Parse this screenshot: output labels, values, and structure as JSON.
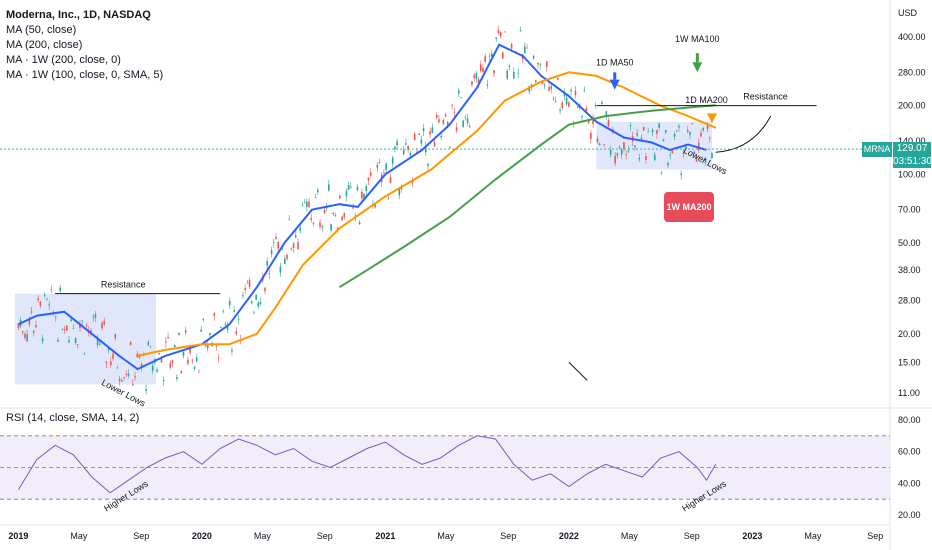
{
  "header": {
    "symbol_line": "Moderna, Inc., 1D, NASDAQ",
    "indicators": [
      "MA (50, close)",
      "MA (200, close)",
      "MA · 1W (200, close, 0)",
      "MA · 1W (100, close, 0, SMA, 5)"
    ],
    "rsi_title": "RSI (14, close, SMA, 14, 2)"
  },
  "price_badge": {
    "ticker": "MRNA",
    "price": "129.07",
    "countdown": "03:51:30"
  },
  "callout_1w_ma200": "1W MA200",
  "colors": {
    "ma50": "#2962ff",
    "ma200": "#ff9800",
    "wma200": "#43a047",
    "rsi": "#7e57c2",
    "box": "#c8d4f5",
    "up": "#26a69a",
    "down": "#ef5350"
  },
  "chart_data": {
    "type": "line",
    "price_unit": "USD",
    "y_scale": "log",
    "y_ticks": [
      11,
      15,
      20,
      28,
      38,
      50,
      70,
      100,
      140,
      200,
      280,
      400
    ],
    "x_ticks": [
      "2019",
      "May",
      "Sep",
      "2020",
      "May",
      "Sep",
      "2021",
      "May",
      "Sep",
      "2022",
      "May",
      "Sep",
      "2023",
      "May",
      "Sep"
    ],
    "rsi_ticks": [
      20,
      40,
      60,
      80
    ],
    "rsi_bands": [
      30,
      50,
      70
    ],
    "series": [
      {
        "name": "MA (50, close)",
        "points": [
          [
            2019.0,
            22
          ],
          [
            2019.1,
            24
          ],
          [
            2019.25,
            25
          ],
          [
            2019.4,
            20
          ],
          [
            2019.55,
            16
          ],
          [
            2019.65,
            14
          ],
          [
            2019.8,
            16
          ],
          [
            2020.0,
            18
          ],
          [
            2020.15,
            22
          ],
          [
            2020.3,
            32
          ],
          [
            2020.45,
            50
          ],
          [
            2020.6,
            70
          ],
          [
            2020.75,
            74
          ],
          [
            2020.85,
            72
          ],
          [
            2021.0,
            100
          ],
          [
            2021.2,
            128
          ],
          [
            2021.35,
            165
          ],
          [
            2021.5,
            240
          ],
          [
            2021.62,
            370
          ],
          [
            2021.75,
            330
          ],
          [
            2021.85,
            270
          ],
          [
            2022.0,
            220
          ],
          [
            2022.15,
            170
          ],
          [
            2022.3,
            145
          ],
          [
            2022.45,
            138
          ],
          [
            2022.55,
            128
          ],
          [
            2022.65,
            135
          ],
          [
            2022.75,
            128
          ]
        ]
      },
      {
        "name": "MA (200, close)",
        "points": [
          [
            2019.65,
            16
          ],
          [
            2019.8,
            17
          ],
          [
            2020.0,
            18
          ],
          [
            2020.15,
            18
          ],
          [
            2020.3,
            20
          ],
          [
            2020.4,
            26
          ],
          [
            2020.55,
            40
          ],
          [
            2020.75,
            58
          ],
          [
            2021.0,
            80
          ],
          [
            2021.25,
            105
          ],
          [
            2021.5,
            155
          ],
          [
            2021.65,
            210
          ],
          [
            2021.85,
            255
          ],
          [
            2022.0,
            280
          ],
          [
            2022.15,
            270
          ],
          [
            2022.3,
            240
          ],
          [
            2022.5,
            200
          ],
          [
            2022.65,
            180
          ],
          [
            2022.8,
            160
          ]
        ]
      },
      {
        "name": "MA · 1W (200, close, 0)",
        "points": [
          [
            2020.75,
            32
          ],
          [
            2020.9,
            38
          ],
          [
            2021.1,
            48
          ],
          [
            2021.35,
            65
          ],
          [
            2021.6,
            95
          ],
          [
            2021.85,
            135
          ],
          [
            2022.0,
            165
          ],
          [
            2022.2,
            180
          ],
          [
            2022.45,
            190
          ],
          [
            2022.7,
            198
          ],
          [
            2022.8,
            201
          ]
        ]
      }
    ],
    "rsi_points": [
      [
        2019.0,
        36
      ],
      [
        2019.1,
        55
      ],
      [
        2019.2,
        64
      ],
      [
        2019.3,
        58
      ],
      [
        2019.4,
        44
      ],
      [
        2019.5,
        34
      ],
      [
        2019.6,
        42
      ],
      [
        2019.7,
        50
      ],
      [
        2019.8,
        56
      ],
      [
        2019.9,
        60
      ],
      [
        2020.0,
        52
      ],
      [
        2020.1,
        62
      ],
      [
        2020.2,
        68
      ],
      [
        2020.3,
        64
      ],
      [
        2020.4,
        58
      ],
      [
        2020.5,
        62
      ],
      [
        2020.6,
        54
      ],
      [
        2020.7,
        50
      ],
      [
        2020.8,
        56
      ],
      [
        2020.9,
        62
      ],
      [
        2021.0,
        66
      ],
      [
        2021.1,
        58
      ],
      [
        2021.2,
        52
      ],
      [
        2021.3,
        56
      ],
      [
        2021.4,
        64
      ],
      [
        2021.5,
        70
      ],
      [
        2021.6,
        68
      ],
      [
        2021.7,
        52
      ],
      [
        2021.8,
        42
      ],
      [
        2021.9,
        46
      ],
      [
        2022.0,
        38
      ],
      [
        2022.1,
        46
      ],
      [
        2022.2,
        52
      ],
      [
        2022.3,
        48
      ],
      [
        2022.4,
        44
      ],
      [
        2022.5,
        56
      ],
      [
        2022.6,
        60
      ],
      [
        2022.7,
        50
      ],
      [
        2022.75,
        42
      ],
      [
        2022.8,
        52
      ]
    ],
    "annotations": {
      "resistance_left": "Resistance",
      "resistance_right": "Resistance",
      "lower_lows_left": "Lower Lows",
      "lower_lows_right": "Lower Lows",
      "higher_lows_left": "Higher Lows",
      "higher_lows_right": "Higher Lows",
      "ma50_1d": "1D MA50",
      "ma100_1w": "1W MA100",
      "ma200_1d": "1D MA200"
    }
  }
}
